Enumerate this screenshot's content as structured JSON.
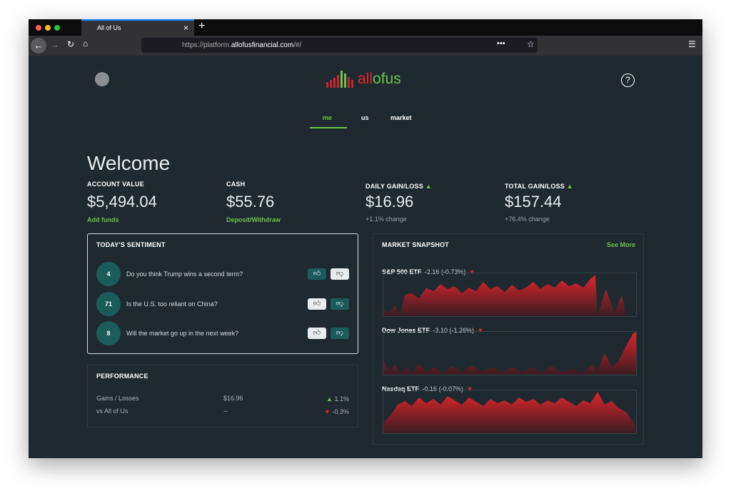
{
  "browser": {
    "tab_title": "All of Us",
    "url": {
      "prefix": "https://platform.",
      "domain": "allofusfinancial.com",
      "suffix": "/#/"
    }
  },
  "header": {
    "logo": {
      "part1": "all",
      "part2": "ofus"
    },
    "nav": [
      "me",
      "us",
      "market"
    ]
  },
  "welcome": "Welcome",
  "stats": [
    {
      "label": "ACCOUNT VALUE",
      "value": "$5,494.04",
      "sub": "Add funds"
    },
    {
      "label": "CASH",
      "value": "$55.76",
      "sub": "Deposit/Withdraw"
    },
    {
      "label": "DAILY GAIN/LOSS",
      "value": "$16.96",
      "sub": "+1.1% change"
    },
    {
      "label": "TOTAL GAIN/LOSS",
      "value": "$157.44",
      "sub": "+76.4% change"
    }
  ],
  "sentiment": {
    "title": "TODAY'S SENTIMENT",
    "questions": [
      {
        "count": "4",
        "text": "Do you think Trump wins a second term?"
      },
      {
        "count": "71",
        "text": "Is the U.S. too reliant on China?"
      },
      {
        "count": "8",
        "text": "Will the market go up in the next week?"
      }
    ]
  },
  "performance": {
    "title": "PERFORMANCE",
    "rows": [
      {
        "label": "Gains / Losses",
        "value": "$16.96",
        "change": "1.1%"
      },
      {
        "label": "vs All of Us",
        "value": "--",
        "change": "-0.3%"
      }
    ]
  },
  "market": {
    "title": "MARKET SNAPSHOT",
    "link": "See More",
    "charts": [
      {
        "name": "S&P 500 ETF",
        "change": "-2.16 (-0.73%)"
      },
      {
        "name": "Dow Jones ETF",
        "change": "-3.10 (-1.26%)"
      },
      {
        "name": "Nasdaq ETF",
        "change": "-0.16 (-0.07%)"
      }
    ]
  }
}
